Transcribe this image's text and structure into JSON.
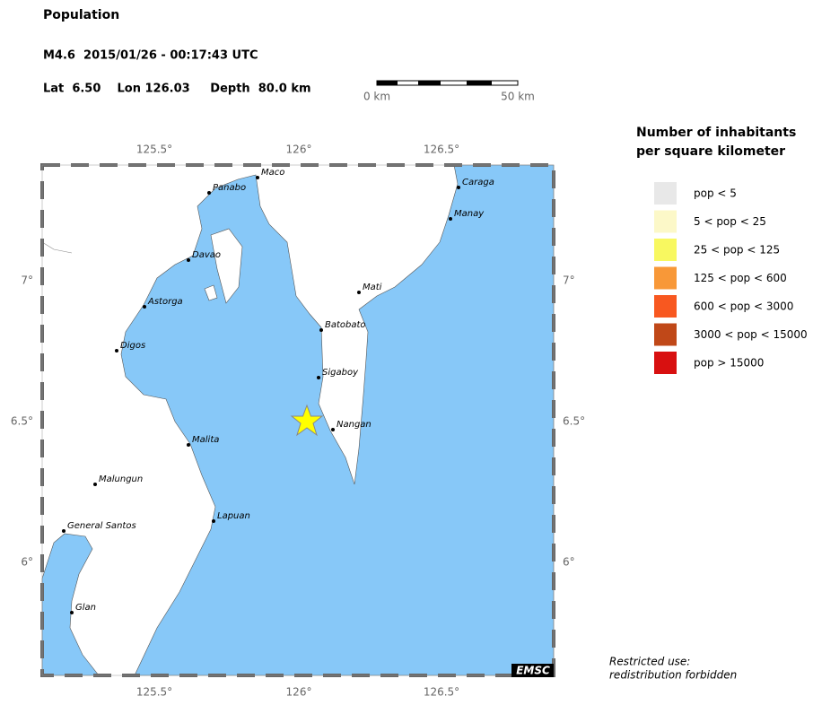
{
  "header": {
    "title": "Population",
    "event": "M4.6  2015/01/26 - 00:17:43 UTC",
    "location": "Lat  6.50    Lon 126.03     Depth  80.0 km"
  },
  "scale": {
    "start": "0 km",
    "end": "50 km"
  },
  "map": {
    "lon_labels": [
      "125.5°",
      "126°",
      "126.5°"
    ],
    "lat_labels": [
      "7°",
      "6.5°",
      "6°"
    ],
    "cities": [
      "Maco",
      "Panabo",
      "Caraga",
      "Manay",
      "Davao",
      "Mati",
      "Astorga",
      "Batobato",
      "Digos",
      "Sigaboy",
      "Nangan",
      "Malita",
      "Malungun",
      "Lapuan",
      "General Santos",
      "Glan"
    ],
    "logo": "EMSC"
  },
  "legend": {
    "title": [
      "Number of inhabitants",
      "per square kilometer"
    ],
    "items": [
      {
        "label": "pop < 5",
        "color": "#e8e8e8"
      },
      {
        "label": "5 < pop < 25",
        "color": "#fcf8c8"
      },
      {
        "label": "25 < pop < 125",
        "color": "#f8f860"
      },
      {
        "label": "125 < pop < 600",
        "color": "#f89838"
      },
      {
        "label": "600 < pop < 3000",
        "color": "#f85820"
      },
      {
        "label": "3000 < pop < 15000",
        "color": "#c04818"
      },
      {
        "label": "pop > 15000",
        "color": "#d81010"
      }
    ]
  },
  "notice": [
    "Restricted use:",
    "redistribution forbidden"
  ]
}
